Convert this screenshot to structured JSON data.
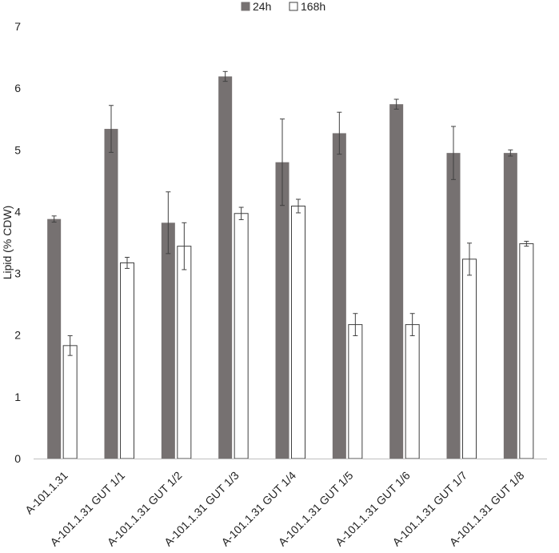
{
  "chart_data": {
    "type": "bar",
    "title": "",
    "xlabel": "",
    "ylabel": "Lipid (% CDW)",
    "ylim": [
      0,
      7
    ],
    "yticks": [
      0,
      1,
      2,
      3,
      4,
      5,
      6,
      7
    ],
    "grid": false,
    "legend_position": "top-center",
    "categories": [
      "A-101.1.31",
      "A-101.1.31 GUT 1/1",
      "A-101.1.31 GUT 1/2",
      "A-101.1.31 GUT 1/3",
      "A-101.1.31 GUT 1/4",
      "A-101.1.31 GUT 1/5",
      "A-101.1.31 GUT 1/6",
      "A-101.1.31 GUT 1/7",
      "A-101.1.31 GUT 1/8"
    ],
    "series": [
      {
        "name": "24h",
        "color": "#767171",
        "outline": "#767171",
        "values": [
          3.88,
          5.34,
          3.82,
          6.19,
          4.8,
          5.27,
          5.74,
          4.95,
          4.95
        ],
        "errors": [
          0.05,
          0.38,
          0.5,
          0.08,
          0.7,
          0.34,
          0.08,
          0.43,
          0.05
        ]
      },
      {
        "name": "168h",
        "color": "#ffffff",
        "outline": "#404040",
        "values": [
          1.83,
          3.17,
          3.44,
          3.97,
          4.09,
          2.17,
          2.17,
          3.23,
          3.48
        ],
        "errors": [
          0.16,
          0.09,
          0.38,
          0.1,
          0.11,
          0.18,
          0.18,
          0.26,
          0.04
        ]
      }
    ]
  }
}
